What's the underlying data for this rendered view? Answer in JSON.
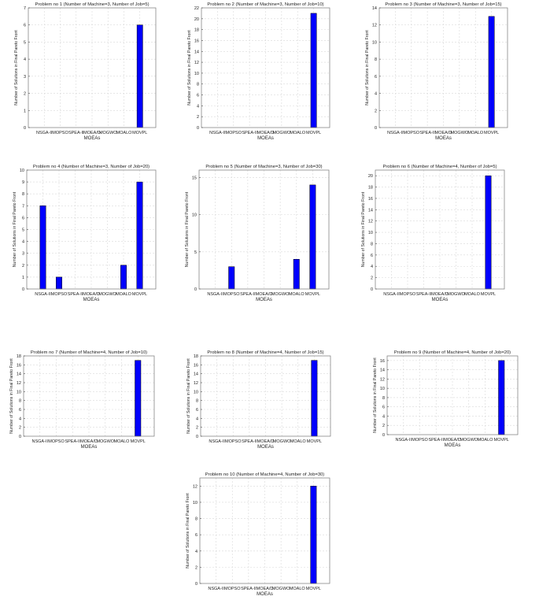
{
  "chart_data": [
    {
      "type": "bar",
      "title": "Problem no 1 (Number of Machine=3, Number of Job=5)",
      "xlabel": "MOEAs",
      "ylabel": "Number of Solutions in Final Pareto Front",
      "categories": [
        "NSGA-II",
        "MOPSO",
        "SPEA-II",
        "MOEA/D",
        "MOGWO",
        "MOALO",
        "MOVPL"
      ],
      "values": [
        0,
        0,
        0,
        0,
        0,
        0,
        6
      ],
      "ylim": [
        0,
        7
      ],
      "yticks": [
        0,
        1,
        2,
        3,
        4,
        5,
        6,
        7
      ],
      "grid": true,
      "bar_color": "#0000ff"
    },
    {
      "type": "bar",
      "title": "Problem no 2 (Number of Machine=3, Number of Job=10)",
      "xlabel": "MOEAs",
      "ylabel": "Number of Solutions in Final Pareto Front",
      "categories": [
        "NSGA-II",
        "MOPSO",
        "SPEA-II",
        "MOEA/D",
        "MOGWO",
        "MOALO",
        "MOVPL"
      ],
      "values": [
        0,
        0,
        0,
        0,
        0,
        0,
        21
      ],
      "ylim": [
        0,
        22
      ],
      "yticks": [
        0,
        2,
        4,
        6,
        8,
        10,
        12,
        14,
        16,
        18,
        20,
        22
      ],
      "grid": true,
      "bar_color": "#0000ff"
    },
    {
      "type": "bar",
      "title": "Problem no 3 (Number of Machine=3, Number of Job=15)",
      "xlabel": "MOEAs",
      "ylabel": "Number of Solutions in Final Pareto Front",
      "categories": [
        "NSGA-II",
        "MOPSO",
        "SPEA-II",
        "MOEA/D",
        "MOGWO",
        "MOALO",
        "MOVPL"
      ],
      "values": [
        0,
        0,
        0,
        0,
        0,
        0,
        13
      ],
      "ylim": [
        0,
        14
      ],
      "yticks": [
        0,
        2,
        4,
        6,
        8,
        10,
        12,
        14
      ],
      "grid": true,
      "bar_color": "#0000ff"
    },
    {
      "type": "bar",
      "title": "Problem no 4 (Number of Machine=3, Number of Job=20)",
      "xlabel": "MOEAs",
      "ylabel": "Number of Solutions in Final Pareto Front",
      "categories": [
        "NSGA-II",
        "MOPSO",
        "SPEA-II",
        "MOEA/D",
        "MOGWO",
        "MOALO",
        "MOVPL"
      ],
      "values": [
        7,
        1,
        0,
        0,
        0,
        2,
        9
      ],
      "ylim": [
        0,
        10
      ],
      "yticks": [
        0,
        1,
        2,
        3,
        4,
        5,
        6,
        7,
        8,
        9,
        10
      ],
      "grid": true,
      "bar_color": "#0000ff"
    },
    {
      "type": "bar",
      "title": "Problem no 5 (Number of Machine=3, Number of Job=30)",
      "xlabel": "MOEAs",
      "ylabel": "Number of Solutions in Final Pareto Front",
      "categories": [
        "NSGA-II",
        "MOPSO",
        "SPEA-II",
        "MOEA/D",
        "MOGWO",
        "MOALO",
        "MOVPL"
      ],
      "values": [
        0,
        3,
        0,
        0,
        0,
        4,
        14
      ],
      "ylim": [
        0,
        16
      ],
      "yticks": [
        0,
        5,
        10,
        15
      ],
      "grid": true,
      "bar_color": "#0000ff"
    },
    {
      "type": "bar",
      "title": "Problem no 6 (Number of Machine=4, Number of Job=5)",
      "xlabel": "MOEAs",
      "ylabel": "Number of Solutions in Final Pareto Front",
      "categories": [
        "NSGA-II",
        "MOPSO",
        "SPEA-II",
        "MOEA/D",
        "MOGWO",
        "MOALO",
        "MOVPL"
      ],
      "values": [
        0,
        0,
        0,
        0,
        0,
        0,
        20
      ],
      "ylim": [
        0,
        21
      ],
      "yticks": [
        0,
        2,
        4,
        6,
        8,
        10,
        12,
        14,
        16,
        18,
        20
      ],
      "grid": true,
      "bar_color": "#0000ff"
    },
    {
      "type": "bar",
      "title": "Problem no 7 (Number of Machine=4, Number of Job=10)",
      "xlabel": "MOEAs",
      "ylabel": "Number of Solutions in Final Pareto Front",
      "categories": [
        "NSGA-II",
        "MOPSO",
        "SPEA-II",
        "MOEA/D",
        "MOGWO",
        "MOALO",
        "MOVPL"
      ],
      "values": [
        0,
        0,
        0,
        0,
        0,
        0,
        17
      ],
      "ylim": [
        0,
        18
      ],
      "yticks": [
        0,
        2,
        4,
        6,
        8,
        10,
        12,
        14,
        16,
        18
      ],
      "grid": true,
      "bar_color": "#0000ff"
    },
    {
      "type": "bar",
      "title": "Problem no 8 (Number of Machine=4, Number of Job=15)",
      "xlabel": "MOEAs",
      "ylabel": "Number of Solutions in Final Pareto Front",
      "categories": [
        "NSGA-II",
        "MOPSO",
        "SPEA-II",
        "MOEA/D",
        "MOGWO",
        "MOALO",
        "MOVPL"
      ],
      "values": [
        0,
        0,
        0,
        0,
        0,
        0,
        17
      ],
      "ylim": [
        0,
        18
      ],
      "yticks": [
        0,
        2,
        4,
        6,
        8,
        10,
        12,
        14,
        16,
        18
      ],
      "grid": true,
      "bar_color": "#0000ff"
    },
    {
      "type": "bar",
      "title": "Problem no 9 (Number of Machine=4, Number of Job=20)",
      "xlabel": "MOEAs",
      "ylabel": "Number of Solutions in Final Pareto Front",
      "categories": [
        "NSGA-II",
        "MOPSO",
        "SPEA-II",
        "MOEA/D",
        "MOGWO",
        "MOALO",
        "MOVPL"
      ],
      "values": [
        0,
        0,
        0,
        0,
        0,
        0,
        16
      ],
      "ylim": [
        0,
        17
      ],
      "yticks": [
        0,
        2,
        4,
        6,
        8,
        10,
        12,
        14,
        16
      ],
      "grid": true,
      "bar_color": "#0000ff"
    },
    {
      "type": "bar",
      "title": "Problem no 10 (Number of Machine=4, Number of Job=30)",
      "xlabel": "MOEAs",
      "ylabel": "Number of Solutions in Final Pareto Front",
      "categories": [
        "NSGA-II",
        "MOPSO",
        "SPEA-II",
        "MOEA/D",
        "MOGWO",
        "MOALO",
        "MOVPL"
      ],
      "values": [
        0,
        0,
        0,
        0,
        0,
        0,
        12
      ],
      "ylim": [
        0,
        13
      ],
      "yticks": [
        0,
        2,
        4,
        6,
        8,
        10,
        12
      ],
      "grid": true,
      "bar_color": "#0000ff"
    }
  ]
}
